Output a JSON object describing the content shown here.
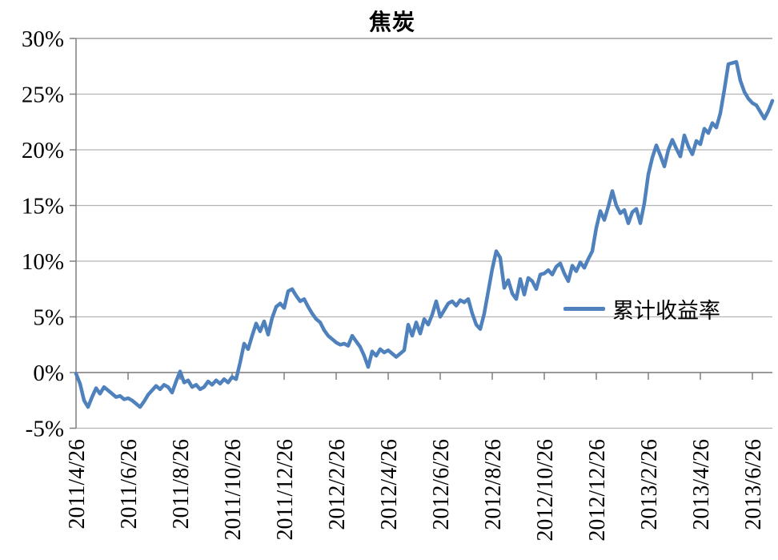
{
  "chart_data": {
    "type": "line",
    "title": "焦炭",
    "legend": {
      "entries": [
        "累计收益率"
      ],
      "position": "middle-right"
    },
    "grid": true,
    "colors": {
      "line": "#4F81BD",
      "gridline": "#b3b3b3",
      "axis": "#7f7f7f",
      "text": "#000000",
      "background": "#ffffff"
    },
    "y_axis": {
      "min": -5,
      "max": 30,
      "unit": "%",
      "ticks": [
        30,
        25,
        20,
        15,
        10,
        5,
        0,
        -5
      ],
      "tick_labels": [
        "30%",
        "25%",
        "20%",
        "15%",
        "10%",
        "5%",
        "0%",
        "-5%"
      ]
    },
    "x_axis": {
      "tick_labels": [
        "2011/4/26",
        "2011/6/26",
        "2011/8/26",
        "2011/10/26",
        "2011/12/26",
        "2012/2/26",
        "2012/4/26",
        "2012/6/26",
        "2012/8/26",
        "2012/10/26",
        "2012/12/26",
        "2013/2/26",
        "2013/4/26",
        "2013/6/26"
      ],
      "points_per_tick": 13
    },
    "series": [
      {
        "name": "累计收益率",
        "color": "#4F81BD",
        "unit": "%",
        "values": [
          -0.1,
          -1.0,
          -2.5,
          -3.1,
          -2.2,
          -1.4,
          -1.9,
          -1.3,
          -1.6,
          -1.9,
          -2.2,
          -2.1,
          -2.4,
          -2.3,
          -2.5,
          -2.8,
          -3.1,
          -2.6,
          -2.0,
          -1.6,
          -1.2,
          -1.5,
          -1.1,
          -1.3,
          -1.8,
          -0.8,
          0.1,
          -0.9,
          -0.7,
          -1.3,
          -1.1,
          -1.5,
          -1.3,
          -0.8,
          -1.1,
          -0.7,
          -1.0,
          -0.6,
          -0.9,
          -0.4,
          -0.6,
          0.9,
          2.6,
          2.1,
          3.3,
          4.4,
          3.7,
          4.6,
          3.4,
          4.9,
          5.9,
          6.2,
          5.8,
          7.3,
          7.5,
          6.9,
          6.4,
          6.6,
          5.9,
          5.3,
          4.8,
          4.5,
          3.8,
          3.3,
          3.0,
          2.7,
          2.5,
          2.6,
          2.4,
          3.3,
          2.8,
          2.3,
          1.5,
          0.5,
          1.9,
          1.5,
          2.1,
          1.8,
          2.0,
          1.7,
          1.4,
          1.7,
          2.0,
          4.3,
          3.3,
          4.5,
          3.5,
          4.8,
          4.3,
          5.2,
          6.4,
          5.0,
          5.6,
          6.2,
          6.4,
          6.0,
          6.5,
          6.3,
          6.6,
          5.3,
          4.3,
          3.9,
          5.3,
          7.3,
          9.3,
          10.9,
          10.3,
          7.6,
          8.3,
          7.1,
          6.6,
          8.4,
          7.0,
          8.5,
          8.2,
          7.5,
          8.8,
          8.9,
          9.2,
          8.8,
          9.5,
          9.8,
          8.9,
          8.2,
          9.6,
          9.1,
          9.9,
          9.4,
          10.2,
          10.9,
          13.0,
          14.5,
          13.7,
          14.9,
          16.3,
          15.0,
          14.3,
          14.6,
          13.4,
          14.4,
          14.7,
          13.4,
          15.2,
          17.8,
          19.3,
          20.4,
          19.5,
          18.5,
          20.0,
          20.9,
          20.1,
          19.4,
          21.3,
          20.3,
          19.6,
          20.8,
          20.5,
          21.9,
          21.5,
          22.4,
          22.0,
          23.3,
          25.4,
          27.7,
          27.8,
          27.9,
          26.2,
          25.2,
          24.6,
          24.2,
          24.0,
          23.4,
          22.8,
          23.5,
          24.4
        ]
      }
    ]
  }
}
